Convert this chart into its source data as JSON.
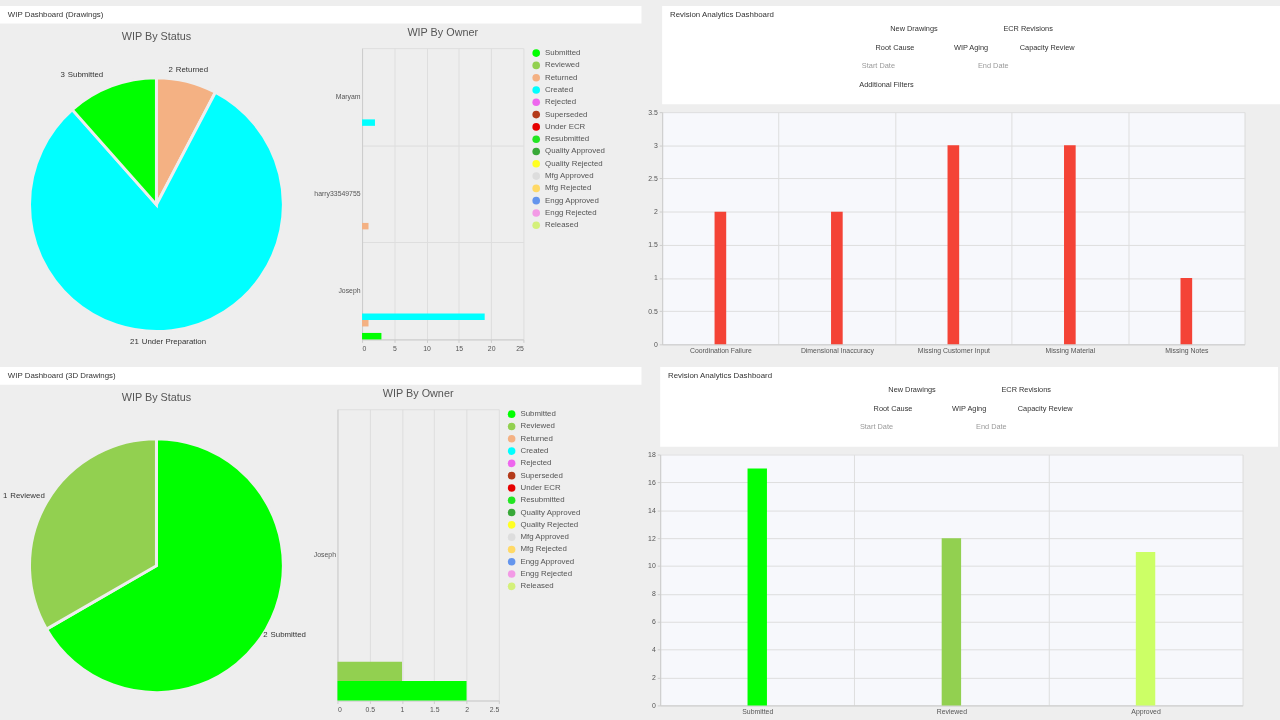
{
  "chart_data": [
    {
      "type": "other",
      "title": "WIP Dashboard (Drawings)"
    },
    {
      "type": "pie",
      "title": "WIP By Status",
      "categories": [
        "Returned",
        "Under Preparation",
        "Submitted"
      ],
      "values": [
        2,
        21,
        3
      ],
      "colors": [
        "#f4b183",
        "#00ffff",
        "#00ff00"
      ],
      "data_labels": true
    },
    {
      "type": "bar",
      "orientation": "horizontal",
      "title": "WIP By Owner",
      "categories": [
        "Maryam",
        "harry33549755",
        "Joseph"
      ],
      "series": [
        {
          "name": "Submitted",
          "color": "#00ff00",
          "values": [
            null,
            null,
            3
          ]
        },
        {
          "name": "Reviewed",
          "color": "#92d050",
          "values": [
            null,
            null,
            null
          ]
        },
        {
          "name": "Returned",
          "color": "#f4b183",
          "values": [
            null,
            1,
            1
          ]
        },
        {
          "name": "Created",
          "color": "#00ffff",
          "values": [
            2,
            null,
            19
          ]
        },
        {
          "name": "Rejected",
          "color": "#ee66ee",
          "values": [
            null,
            null,
            null
          ]
        },
        {
          "name": "Superseded",
          "color": "#b33a1a",
          "values": [
            null,
            null,
            null
          ]
        },
        {
          "name": "Under ECR",
          "color": "#e60000",
          "values": [
            null,
            null,
            null
          ]
        },
        {
          "name": "Resubmitted",
          "color": "#22e622",
          "values": [
            null,
            null,
            null
          ]
        },
        {
          "name": "Quality Approved",
          "color": "#38a838",
          "values": [
            null,
            null,
            null
          ]
        },
        {
          "name": "Quality Rejected",
          "color": "#ffff22",
          "values": [
            null,
            null,
            null
          ]
        },
        {
          "name": "Mfg Approved",
          "color": "#dddddd",
          "values": [
            null,
            null,
            null
          ]
        },
        {
          "name": "Mfg Rejected",
          "color": "#ffd966",
          "values": [
            null,
            null,
            null
          ]
        },
        {
          "name": "Engg Approved",
          "color": "#6495ed",
          "values": [
            null,
            null,
            null
          ]
        },
        {
          "name": "Engg Rejected",
          "color": "#f39ae6",
          "values": [
            null,
            null,
            null
          ]
        },
        {
          "name": "Released",
          "color": "#d4f07a",
          "values": [
            null,
            null,
            null
          ]
        }
      ],
      "xlim": [
        0,
        25
      ],
      "xticks": [
        0,
        5,
        10,
        15,
        20,
        25
      ],
      "grid": true,
      "legend": "right"
    },
    {
      "type": "other",
      "title": "Revision Analytics Dashboard",
      "annotations": [
        "New Drawings",
        "ECR Revisions",
        "Root Cause",
        "WIP Aging",
        "Capacity Review",
        "Start Date",
        "End Date",
        "Additional Filters"
      ]
    },
    {
      "type": "bar",
      "categories": [
        "Coordination Failure",
        "Dimensional Inaccuracy",
        "Missing Customer Input",
        "Missing Material",
        "Missing Notes"
      ],
      "values": [
        2,
        2,
        3,
        3,
        1
      ],
      "color": "#f44336",
      "ylim": [
        0,
        3.5
      ],
      "yticks": [
        0,
        0.5,
        1,
        1.5,
        2,
        2.5,
        3,
        3.5
      ],
      "grid": true
    },
    {
      "type": "other",
      "title": "WIP Dashboard (3D Drawings)"
    },
    {
      "type": "pie",
      "title": "WIP By Status",
      "categories": [
        "Submitted",
        "Reviewed"
      ],
      "values": [
        2,
        1
      ],
      "colors": [
        "#00ff00",
        "#92d050"
      ],
      "data_labels": true
    },
    {
      "type": "bar",
      "orientation": "horizontal",
      "title": "WIP By Owner",
      "categories": [
        "Joseph"
      ],
      "series": [
        {
          "name": "Submitted",
          "color": "#00ff00",
          "values": [
            2
          ]
        },
        {
          "name": "Reviewed",
          "color": "#92d050",
          "values": [
            1
          ]
        },
        {
          "name": "Returned",
          "color": "#f4b183",
          "values": [
            null
          ]
        },
        {
          "name": "Created",
          "color": "#00ffff",
          "values": [
            null
          ]
        },
        {
          "name": "Rejected",
          "color": "#ee66ee",
          "values": [
            null
          ]
        },
        {
          "name": "Superseded",
          "color": "#b33a1a",
          "values": [
            null
          ]
        },
        {
          "name": "Under ECR",
          "color": "#e60000",
          "values": [
            null
          ]
        },
        {
          "name": "Resubmitted",
          "color": "#22e622",
          "values": [
            null
          ]
        },
        {
          "name": "Quality Approved",
          "color": "#38a838",
          "values": [
            null
          ]
        },
        {
          "name": "Quality Rejected",
          "color": "#ffff22",
          "values": [
            null
          ]
        },
        {
          "name": "Mfg Approved",
          "color": "#dddddd",
          "values": [
            null
          ]
        },
        {
          "name": "Mfg Rejected",
          "color": "#ffd966",
          "values": [
            null
          ]
        },
        {
          "name": "Engg Approved",
          "color": "#6495ed",
          "values": [
            null
          ]
        },
        {
          "name": "Engg Rejected",
          "color": "#f39ae6",
          "values": [
            null
          ]
        },
        {
          "name": "Released",
          "color": "#d4f07a",
          "values": [
            null
          ]
        }
      ],
      "xlim": [
        0,
        2.5
      ],
      "xticks": [
        0,
        0.5,
        1,
        1.5,
        2,
        2.5
      ],
      "grid": true,
      "legend": "right"
    },
    {
      "type": "other",
      "title": "Revision Analytics Dashboard",
      "annotations": [
        "New Drawings",
        "ECR Revisions",
        "Root Cause",
        "WIP Aging",
        "Capacity Review",
        "Start Date",
        "End Date"
      ]
    },
    {
      "type": "bar",
      "categories": [
        "Submitted",
        "Reviewed",
        "Approved"
      ],
      "values": [
        17,
        12,
        11
      ],
      "colors": [
        "#00ff00",
        "#92d050",
        "#ccff66"
      ],
      "ylim": [
        0,
        18
      ],
      "yticks": [
        0,
        2,
        4,
        6,
        8,
        10,
        12,
        14,
        16,
        18
      ],
      "grid": true
    }
  ]
}
